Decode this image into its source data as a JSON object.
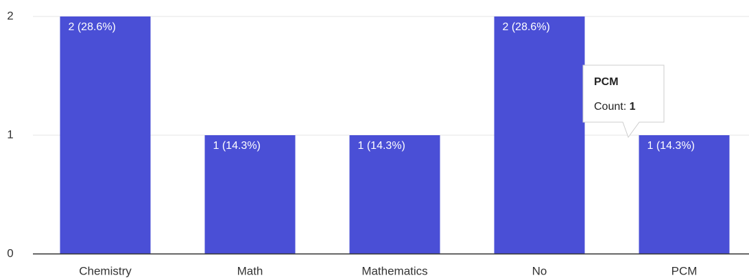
{
  "chart_data": {
    "type": "bar",
    "categories": [
      "Chemistry",
      "Math",
      "Mathematics",
      "No",
      "PCM"
    ],
    "values": [
      2,
      1,
      1,
      2,
      1
    ],
    "value_labels": [
      "2 (28.6%)",
      "1 (14.3%)",
      "1 (14.3%)",
      "2 (28.6%)",
      "1 (14.3%)"
    ],
    "color": "#4a4fd6",
    "ylim": [
      0,
      2
    ],
    "yticks": [
      0,
      1,
      2
    ],
    "grid": true,
    "tooltip": {
      "title": "PCM",
      "label": "Count:",
      "value": 1
    }
  }
}
